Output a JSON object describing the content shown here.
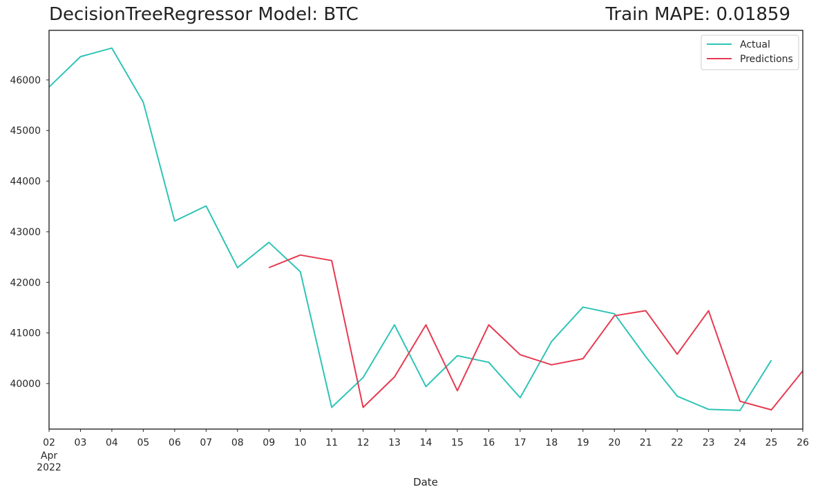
{
  "title_left": "DecisionTreeRegressor Model: BTC",
  "title_right": "Train MAPE: 0.01859",
  "chart_data": {
    "type": "line",
    "xlabel": "Date",
    "ylabel": "",
    "x": [
      "2022-04-02",
      "2022-04-03",
      "2022-04-04",
      "2022-04-05",
      "2022-04-06",
      "2022-04-07",
      "2022-04-08",
      "2022-04-09",
      "2022-04-10",
      "2022-04-11",
      "2022-04-12",
      "2022-04-13",
      "2022-04-14",
      "2022-04-15",
      "2022-04-16",
      "2022-04-17",
      "2022-04-18",
      "2022-04-19",
      "2022-04-20",
      "2022-04-21",
      "2022-04-22",
      "2022-04-23",
      "2022-04-24",
      "2022-04-25",
      "2022-04-26"
    ],
    "xlim": [
      "2022-04-02",
      "2022-04-26"
    ],
    "x_tick_labels": [
      "02",
      "03",
      "04",
      "05",
      "06",
      "07",
      "08",
      "09",
      "10",
      "11",
      "12",
      "13",
      "14",
      "15",
      "16",
      "17",
      "18",
      "19",
      "20",
      "21",
      "22",
      "23",
      "24",
      "25",
      "26"
    ],
    "x_tick_sublabels": [
      "Apr",
      "2022"
    ],
    "ylim": [
      39100,
      46980
    ],
    "y_ticks": [
      40000,
      41000,
      42000,
      43000,
      44000,
      45000,
      46000
    ],
    "grid": false,
    "legend_position": "top-right",
    "series": [
      {
        "name": "Actual",
        "color": "#2ec4b6",
        "values": [
          45860,
          46460,
          46630,
          45560,
          43210,
          43510,
          42290,
          42790,
          42210,
          39530,
          40120,
          41160,
          39940,
          40550,
          40420,
          39720,
          40830,
          41510,
          41380,
          40530,
          39750,
          39490,
          39470,
          40460,
          null
        ]
      },
      {
        "name": "Predictions",
        "color": "#e63950",
        "values": [
          null,
          null,
          null,
          null,
          null,
          null,
          null,
          42290,
          42540,
          42430,
          39530,
          40130,
          41160,
          39860,
          41160,
          40570,
          40370,
          40490,
          41340,
          41440,
          40580,
          41440,
          39650,
          39480,
          40250
        ]
      }
    ]
  }
}
